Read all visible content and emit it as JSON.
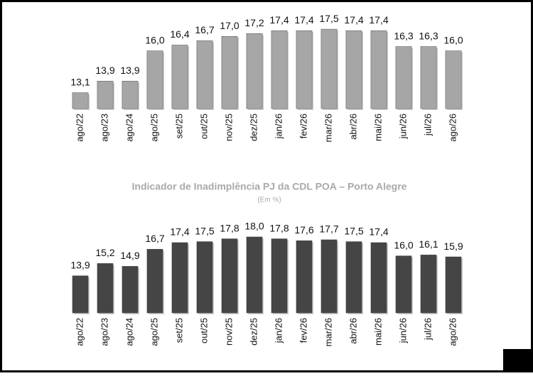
{
  "chart_data": [
    {
      "type": "bar",
      "categories": [
        "ago/22",
        "ago/23",
        "ago/24",
        "ago/25",
        "set/25",
        "out/25",
        "nov/25",
        "dez/25",
        "jan/26",
        "fev/26",
        "mar/26",
        "abr/26",
        "mai/26",
        "jun/26",
        "jul/26",
        "ago/26"
      ],
      "values": [
        13.1,
        13.9,
        13.9,
        16.0,
        16.4,
        16.7,
        17.0,
        17.2,
        17.4,
        17.4,
        17.5,
        17.4,
        17.4,
        16.3,
        16.3,
        16.0
      ],
      "value_labels": [
        "13,1",
        "13,9",
        "13,9",
        "16,0",
        "16,4",
        "16,7",
        "17,0",
        "17,2",
        "17,4",
        "17,4",
        "17,5",
        "17,4",
        "17,4",
        "16,3",
        "16,3",
        "16,0"
      ],
      "color": "#a6a6a6",
      "ylim": [
        12,
        18
      ]
    },
    {
      "type": "bar",
      "title": "Indicador de Inadimplência PJ da CDL POA – Porto Alegre",
      "subtitle": "(Em %)",
      "categories": [
        "ago/22",
        "ago/23",
        "ago/24",
        "ago/25",
        "set/25",
        "out/25",
        "nov/25",
        "dez/25",
        "jan/26",
        "fev/26",
        "mar/26",
        "abr/26",
        "mai/26",
        "jun/26",
        "jul/26",
        "ago/26"
      ],
      "values": [
        13.9,
        15.2,
        14.9,
        16.7,
        17.4,
        17.5,
        17.8,
        18.0,
        17.8,
        17.6,
        17.7,
        17.5,
        17.4,
        16.0,
        16.1,
        15.9
      ],
      "value_labels": [
        "13,9",
        "15,2",
        "14,9",
        "16,7",
        "17,4",
        "17,5",
        "17,8",
        "18,0",
        "17,8",
        "17,6",
        "17,7",
        "17,5",
        "17,4",
        "16,0",
        "16,1",
        "15,9"
      ],
      "color": "#454545",
      "ylim": [
        10,
        18
      ]
    }
  ]
}
